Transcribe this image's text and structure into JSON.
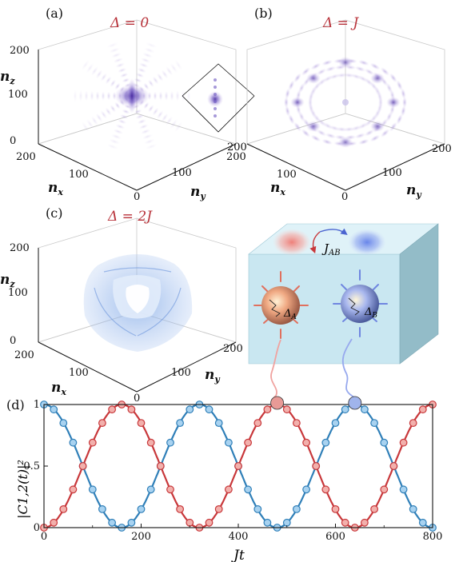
{
  "panels": {
    "a": {
      "label": "(a)",
      "delta": "Δ = 0"
    },
    "b": {
      "label": "(b)",
      "delta": "Δ = J"
    },
    "c": {
      "label": "(c)",
      "delta": "Δ = 2J"
    },
    "d": {
      "label": "(d)"
    }
  },
  "cube_axes": {
    "nz": "n",
    "nz_sub": "z",
    "nx": "n",
    "nx_sub": "x",
    "ny": "n",
    "ny_sub": "y",
    "z_ticks": [
      "0",
      "100",
      "200"
    ],
    "x_ticks": [
      "200",
      "100",
      "0"
    ],
    "y_ticks": [
      "100",
      "200"
    ],
    "b_y_ticks": [
      "100",
      "200"
    ],
    "b_x_ticks": [
      "200",
      "100",
      "0"
    ]
  },
  "schematic": {
    "coupling": "J",
    "coupling_sub": "AB",
    "delta_a": "Δ",
    "delta_a_sub": "A",
    "delta_b": "Δ",
    "delta_b_sub": "B",
    "colors": {
      "red": "#e8705e",
      "blue": "#6f86e0",
      "box": "#c7e6f0"
    }
  },
  "chart_data": {
    "type": "line",
    "xlabel": "Jt",
    "ylabel": "|C1,2(t)|²",
    "xlim": [
      0,
      800
    ],
    "ylim": [
      0,
      1
    ],
    "x_ticks": [
      "0",
      "200",
      "400",
      "600",
      "800"
    ],
    "y_ticks": [
      "0",
      "0.5",
      "1"
    ],
    "period": 320,
    "series": [
      {
        "color": "#2f7fb8",
        "marker_fill": "#a8d2f0",
        "x": [
          0,
          20,
          40,
          60,
          80,
          100,
          120,
          140,
          160,
          180,
          200,
          220,
          240,
          260,
          280,
          300,
          320,
          340,
          360,
          380,
          400,
          420,
          440,
          460,
          480,
          500,
          520,
          540,
          560,
          580,
          600,
          620,
          640,
          660,
          680,
          700,
          720,
          740,
          760,
          780,
          800
        ],
        "y": [
          1.0,
          0.96,
          0.85,
          0.69,
          0.5,
          0.31,
          0.15,
          0.04,
          0.0,
          0.04,
          0.15,
          0.31,
          0.5,
          0.69,
          0.85,
          0.96,
          1.0,
          0.96,
          0.85,
          0.69,
          0.5,
          0.31,
          0.15,
          0.04,
          0.0,
          0.04,
          0.15,
          0.31,
          0.5,
          0.69,
          0.85,
          0.96,
          1.0,
          0.96,
          0.85,
          0.69,
          0.5,
          0.31,
          0.15,
          0.04,
          0.0
        ]
      },
      {
        "color": "#c8373a",
        "marker_fill": "#f2b0ac",
        "x": [
          0,
          20,
          40,
          60,
          80,
          100,
          120,
          140,
          160,
          180,
          200,
          220,
          240,
          260,
          280,
          300,
          320,
          340,
          360,
          380,
          400,
          420,
          440,
          460,
          480,
          500,
          520,
          540,
          560,
          580,
          600,
          620,
          640,
          660,
          680,
          700,
          720,
          740,
          760,
          780,
          800
        ],
        "y": [
          0.0,
          0.04,
          0.15,
          0.31,
          0.5,
          0.69,
          0.85,
          0.96,
          1.0,
          0.96,
          0.85,
          0.69,
          0.5,
          0.31,
          0.15,
          0.04,
          0.0,
          0.04,
          0.15,
          0.31,
          0.5,
          0.69,
          0.85,
          0.96,
          1.0,
          0.96,
          0.85,
          0.69,
          0.5,
          0.31,
          0.15,
          0.04,
          0.0,
          0.04,
          0.15,
          0.31,
          0.5,
          0.69,
          0.85,
          0.96,
          1.0
        ]
      }
    ],
    "highlights": [
      {
        "x": 480,
        "y": 1.0,
        "color": "#e89a96"
      },
      {
        "x": 640,
        "y": 1.0,
        "color": "#a0b4ec"
      }
    ]
  }
}
